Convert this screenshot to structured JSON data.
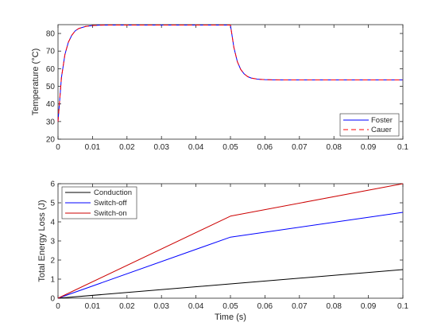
{
  "chart_data": [
    {
      "type": "line",
      "title": "",
      "xlabel": "",
      "ylabel": "Temperature (°C)",
      "xlim": [
        0,
        0.1
      ],
      "ylim": [
        20,
        85
      ],
      "xticks": [
        "0",
        "0.01",
        "0.02",
        "0.03",
        "0.04",
        "0.05",
        "0.06",
        "0.07",
        "0.08",
        "0.09",
        "0.1"
      ],
      "yticks": [
        "20",
        "30",
        "40",
        "50",
        "60",
        "70",
        "80"
      ],
      "grid": false,
      "legend_position": "bottom-right",
      "series": [
        {
          "name": "Foster",
          "color": "#0000ff",
          "style": "solid",
          "x": [
            0,
            0.001,
            0.002,
            0.003,
            0.004,
            0.005,
            0.006,
            0.008,
            0.01,
            0.012,
            0.015,
            0.02,
            0.03,
            0.04,
            0.05,
            0.051,
            0.052,
            0.053,
            0.054,
            0.055,
            0.056,
            0.058,
            0.06,
            0.062,
            0.065,
            0.07,
            0.08,
            0.09,
            0.1
          ],
          "values": [
            30,
            55,
            68,
            75,
            79,
            81.5,
            82.8,
            84,
            84.5,
            84.7,
            84.8,
            84.8,
            84.8,
            84.8,
            84.8,
            72,
            64,
            59.5,
            57,
            55.5,
            54.7,
            54,
            53.8,
            53.7,
            53.6,
            53.6,
            53.6,
            53.6,
            53.6
          ]
        },
        {
          "name": "Cauer",
          "color": "#ff0000",
          "style": "dashed",
          "x": [
            0,
            0.001,
            0.002,
            0.003,
            0.004,
            0.005,
            0.006,
            0.008,
            0.01,
            0.012,
            0.015,
            0.02,
            0.03,
            0.04,
            0.05,
            0.051,
            0.052,
            0.053,
            0.054,
            0.055,
            0.056,
            0.058,
            0.06,
            0.062,
            0.065,
            0.07,
            0.08,
            0.09,
            0.1
          ],
          "values": [
            30,
            55,
            68,
            75,
            79,
            81.5,
            82.8,
            84,
            84.5,
            84.7,
            84.8,
            84.8,
            84.8,
            84.8,
            84.8,
            72,
            64,
            59.5,
            57,
            55.5,
            54.7,
            54,
            53.8,
            53.7,
            53.6,
            53.6,
            53.6,
            53.6,
            53.6
          ]
        }
      ]
    },
    {
      "type": "line",
      "title": "",
      "xlabel": "Time (s)",
      "ylabel": "Total Energy Loss (J)",
      "xlim": [
        0,
        0.1
      ],
      "ylim": [
        0,
        6
      ],
      "xticks": [
        "0",
        "0.01",
        "0.02",
        "0.03",
        "0.04",
        "0.05",
        "0.06",
        "0.07",
        "0.08",
        "0.09",
        "0.1"
      ],
      "yticks": [
        "0",
        "1",
        "2",
        "3",
        "4",
        "5",
        "6"
      ],
      "grid": false,
      "legend_position": "top-left",
      "series": [
        {
          "name": "Conduction",
          "color": "#000000",
          "style": "solid",
          "x": [
            0,
            0.05,
            0.1
          ],
          "values": [
            0,
            0.75,
            1.5
          ]
        },
        {
          "name": "Switch-off",
          "color": "#0000ff",
          "style": "solid",
          "x": [
            0,
            0.05,
            0.1
          ],
          "values": [
            0,
            3.2,
            4.5
          ]
        },
        {
          "name": "Switch-on",
          "color": "#cc0000",
          "style": "solid",
          "x": [
            0,
            0.05,
            0.1
          ],
          "values": [
            0,
            4.3,
            6.0
          ]
        }
      ]
    }
  ]
}
